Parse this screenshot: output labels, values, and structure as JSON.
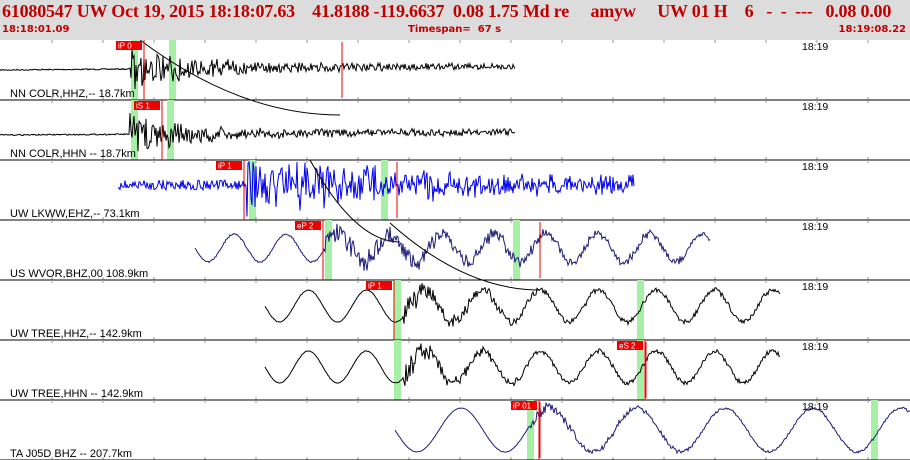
{
  "header": {
    "title": "61080547 UW Oct 19, 2015 18:18:07.63    41.8188 -119.6637  0.08 1.75 Md re     amyw     UW 01 H    6   -  -  ---   0.08 0.00",
    "start_time": "18:18:01.09",
    "timespan": "Timespan=  67 s",
    "end_time": "18:19:08.22"
  },
  "colors": {
    "header_bg": "#dcdcdc",
    "header_text": "#c00000",
    "pick": "#ee0000",
    "highlight": "#a6f0a6",
    "blue_trace": "#0000ee",
    "navy_trace": "#1c1c78",
    "tick": "#9a9a9a"
  },
  "panels": [
    {
      "label": "NN COLR,HHZ,-- 18.7km",
      "time": "18:19",
      "picks": [
        {
          "name": "iP 0",
          "t": 0.158
        }
      ],
      "trace_color": "black"
    },
    {
      "label": "NN COLR,HHN -- 18.7km",
      "time": "18:19",
      "picks": [
        {
          "name": "iS 1",
          "t": 0.178
        }
      ],
      "trace_color": "black"
    },
    {
      "label": "UW LKWW,EHZ,-- 73.1km",
      "time": "18:19",
      "picks": [
        {
          "name": "iP 1",
          "t": 0.268
        }
      ],
      "trace_color": "blue"
    },
    {
      "label": "US WVOR,BHZ,00 108.9km",
      "time": "18:19",
      "picks": [
        {
          "name": "eP 2",
          "t": 0.355
        }
      ],
      "trace_color": "navy"
    },
    {
      "label": "UW TREE,HHZ,-- 142.9km",
      "time": "18:19",
      "picks": [
        {
          "name": "iP 1",
          "t": 0.433
        }
      ],
      "trace_color": "black"
    },
    {
      "label": "UW TREE,HHN -- 142.9km",
      "time": "18:19",
      "picks": [
        {
          "name": "eS 2",
          "t": 0.709
        }
      ],
      "trace_color": "black"
    },
    {
      "label": "TA J05D BHZ -- 207.7km",
      "time": "18:19",
      "picks": [
        {
          "name": "iP 01",
          "t": 0.592
        }
      ],
      "trace_color": "navy"
    }
  ]
}
